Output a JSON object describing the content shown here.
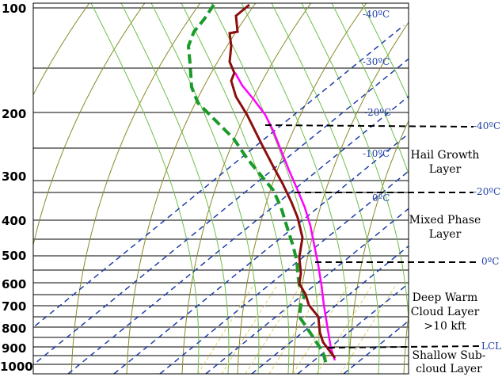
{
  "chart_data": {
    "type": "line",
    "title": "",
    "xlabel": "",
    "ylabel": "",
    "pressure_levels": [
      "100",
      "200",
      "300",
      "400",
      "500",
      "600",
      "700",
      "800",
      "900",
      "1000"
    ],
    "isotherm_labels": [
      "-40ºC",
      "-30ºC",
      "-20ºC",
      "-10ºC",
      "0ºC"
    ],
    "right_labels": [
      "-40ºC",
      "-20ºC",
      "0ºC",
      "LCL"
    ],
    "layers": [
      {
        "lines": [
          "Hail Growth",
          "Layer"
        ]
      },
      {
        "lines": [
          "Mixed Phase",
          "Layer"
        ]
      },
      {
        "lines": [
          "Deep Warm",
          "Cloud Layer",
          ">10 kft"
        ]
      },
      {
        "lines": [
          "Shallow Sub-",
          "cloud Layer"
        ]
      }
    ],
    "colors": {
      "temperature": "#8b0d0d",
      "parcel": "#ff00ff",
      "dewpoint": "#1a9a2a",
      "isotherm": "#1f3fa8",
      "dry_adiabat": "#8a8a2a",
      "moist_adiabat": "#6fbf4a",
      "mixing_ratio": "#e0d060"
    }
  }
}
